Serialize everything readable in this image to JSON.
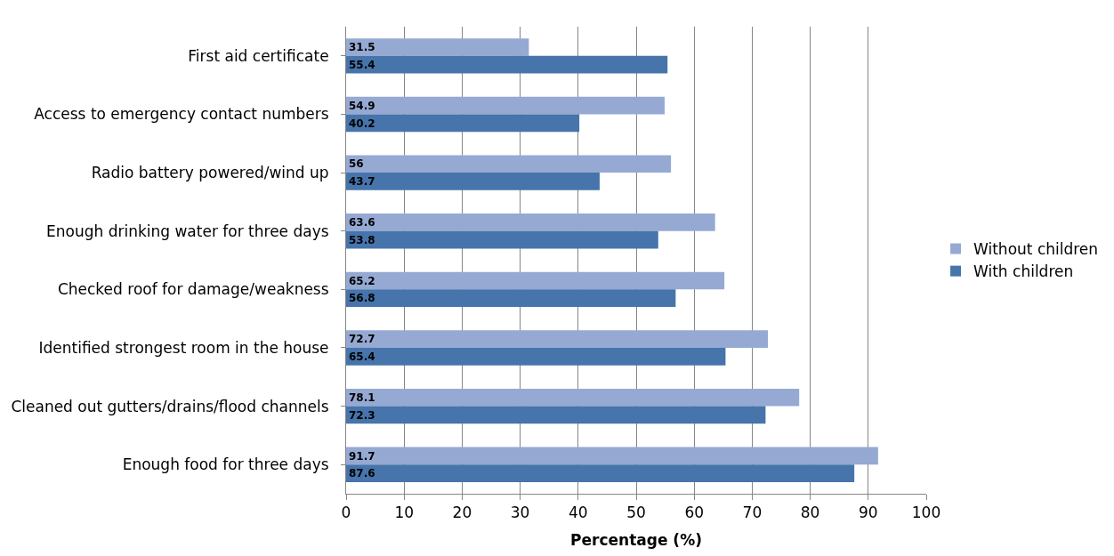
{
  "chart_data": {
    "type": "bar",
    "orientation": "horizontal",
    "xlabel": "Percentage (%)",
    "categories": [
      "First aid certificate",
      "Access to emergency contact numbers",
      "Radio battery powered/wind up",
      "Enough drinking water for three days",
      "Checked roof for damage/weakness",
      "Identified strongest room in the house",
      "Cleaned out gutters/drains/flood channels",
      "Enough food for three days"
    ],
    "series": [
      {
        "name": "Without children",
        "color": "#95a9d3",
        "values": [
          31.5,
          54.9,
          56,
          63.6,
          65.2,
          72.7,
          78.1,
          91.7
        ]
      },
      {
        "name": "With children",
        "color": "#4674ab",
        "values": [
          55.4,
          40.2,
          43.7,
          53.8,
          56.8,
          65.4,
          72.3,
          87.6
        ]
      }
    ],
    "xlim": [
      0,
      100
    ],
    "xticks": [
      0,
      10,
      20,
      30,
      40,
      50,
      60,
      70,
      80,
      90,
      100
    ],
    "grid": "x",
    "legend": "right",
    "data_labels": true
  }
}
